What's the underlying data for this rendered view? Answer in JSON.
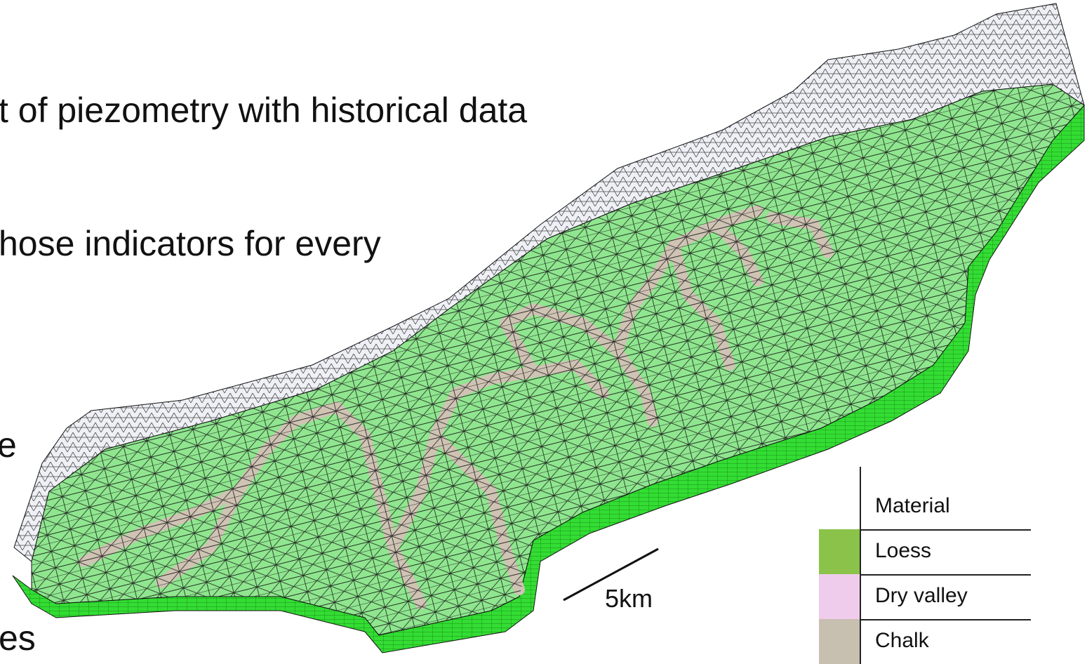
{
  "slide": {
    "lines": [
      "t of piezometry with historical data",
      "hose indicators for every",
      "e",
      "es"
    ]
  },
  "diagram": {
    "scale_bar_label": "5km",
    "colors": {
      "loess_surface": "#8fe68f",
      "chalk_valley": "#cfc3b4",
      "side_wall": "#33dd33",
      "mesh_line": "#111111",
      "unsaturated_mesh": "#eef0f5"
    }
  },
  "legend": {
    "header": "Material",
    "items": [
      {
        "label": "Loess",
        "color": "#8bc34a"
      },
      {
        "label": "Dry valley",
        "color": "#f0ccec"
      },
      {
        "label": "Chalk",
        "color": "#c7bfb0"
      }
    ]
  }
}
